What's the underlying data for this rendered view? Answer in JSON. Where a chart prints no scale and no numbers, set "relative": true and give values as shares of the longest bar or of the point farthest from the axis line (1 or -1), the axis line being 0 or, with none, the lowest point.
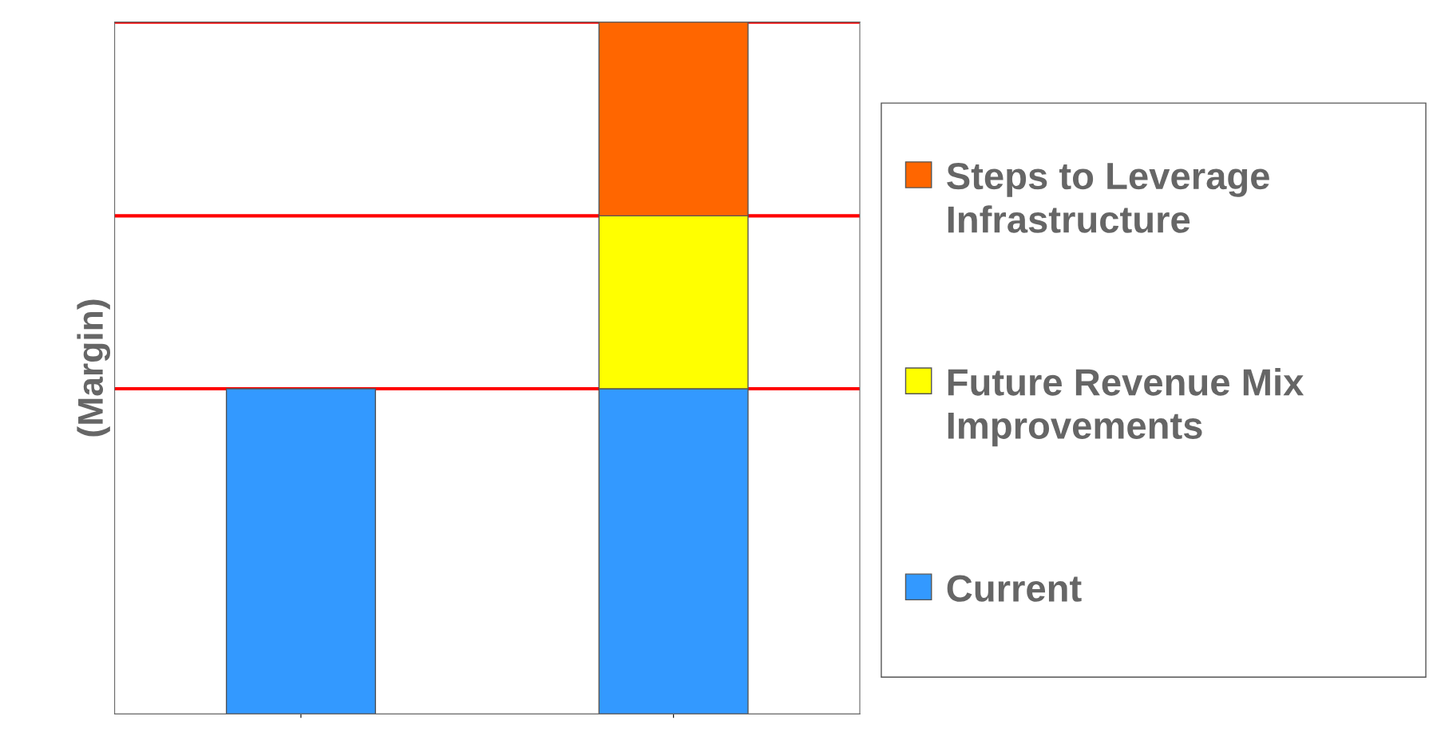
{
  "chart_data": {
    "type": "bar",
    "ylabel": "(Margin)",
    "relative": true,
    "stacked": true,
    "categories": [
      null,
      null
    ],
    "series": [
      {
        "name": "Current",
        "color": "#3399ff",
        "values": [
          0.47,
          0.47
        ]
      },
      {
        "name": "Future Revenue Mix Improvements",
        "color": "#ffff00",
        "values": [
          null,
          0.25
        ]
      },
      {
        "name": "Steps to Leverage Infrastructure",
        "color": "#ff6600",
        "values": [
          null,
          0.28
        ]
      }
    ],
    "ref_lines": [
      {
        "axis": "y",
        "value": 0.47,
        "color": "#ff0000"
      },
      {
        "axis": "y",
        "value": 0.72,
        "color": "#ff0000"
      },
      {
        "axis": "y",
        "value": 1.0,
        "color": "#ff0000"
      }
    ],
    "legend": "right",
    "grid": false
  }
}
